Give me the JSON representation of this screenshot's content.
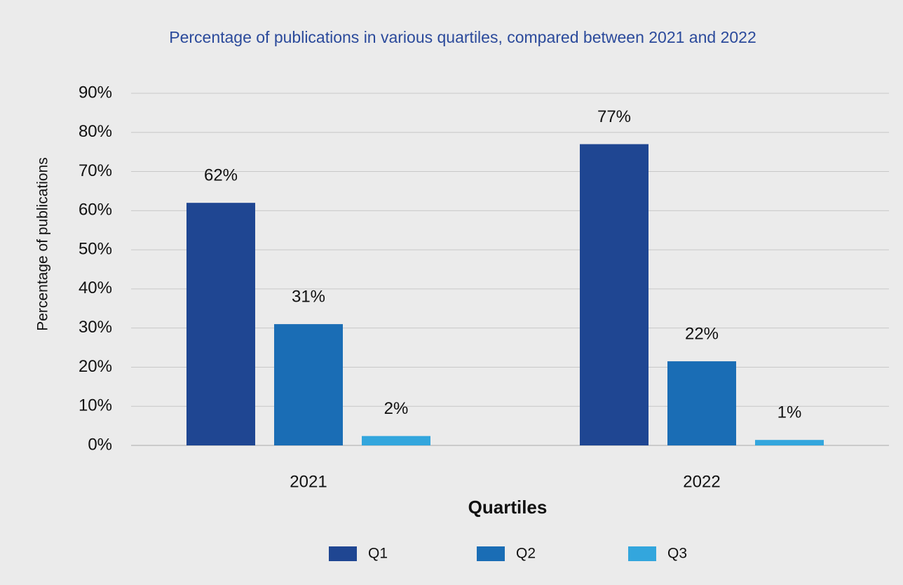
{
  "chart_data": {
    "type": "bar",
    "title": "Percentage of publications in various quartiles, compared between 2021 and 2022",
    "xlabel": "Quartiles",
    "ylabel": "Percentage of publications",
    "categories": [
      "2021",
      "2022"
    ],
    "series": [
      {
        "name": "Q1",
        "color": "#1f4692",
        "values": [
          62,
          77
        ],
        "value_labels": [
          "62%",
          "77%"
        ]
      },
      {
        "name": "Q2",
        "color": "#1a6db5",
        "values": [
          31,
          21.5
        ],
        "value_labels": [
          "31%",
          "22%"
        ]
      },
      {
        "name": "Q3",
        "color": "#33a6dd",
        "values": [
          2.4,
          1.4
        ],
        "value_labels": [
          "2%",
          "1%"
        ]
      }
    ],
    "ylim": [
      0,
      90
    ],
    "yticks": [
      {
        "value": 0,
        "label": "0%"
      },
      {
        "value": 10,
        "label": "10%"
      },
      {
        "value": 20,
        "label": "20%"
      },
      {
        "value": 30,
        "label": "30%"
      },
      {
        "value": 40,
        "label": "40%"
      },
      {
        "value": 50,
        "label": "50%"
      },
      {
        "value": 60,
        "label": "60%"
      },
      {
        "value": 70,
        "label": "70%"
      },
      {
        "value": 80,
        "label": "80%"
      },
      {
        "value": 90,
        "label": "90%"
      }
    ],
    "grid": true,
    "legend": "bottom"
  }
}
